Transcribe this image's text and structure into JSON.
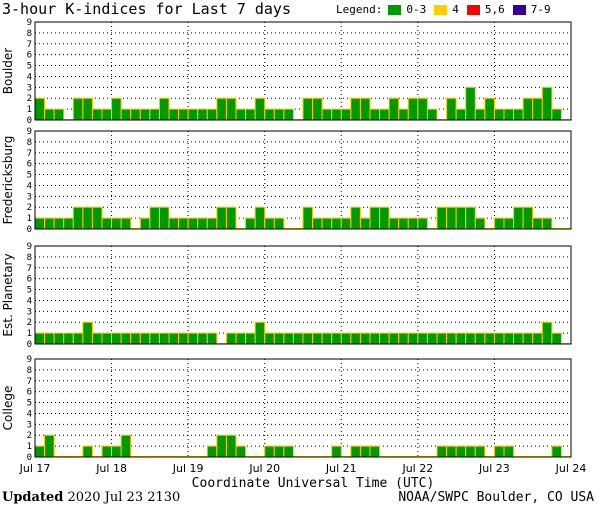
{
  "header": {
    "title": "3-hour K-indices for Last 7 days",
    "legend_label": "Legend:",
    "legend": [
      {
        "label": "0-3",
        "color": "#009900"
      },
      {
        "label": "4",
        "color": "#ffcc00"
      },
      {
        "label": "5,6",
        "color": "#ff0000"
      },
      {
        "label": "7-9",
        "color": "#330099"
      }
    ]
  },
  "footer": {
    "updated_label": "Updated",
    "updated_value": "2020 Jul 23 2130",
    "source": "NOAA/SWPC Boulder, CO USA"
  },
  "chart_data": {
    "type": "bar",
    "xlabel": "Coordinate Universal Time (UTC)",
    "x_ticks": [
      "Jul 17",
      "Jul 18",
      "Jul 19",
      "Jul 20",
      "Jul 21",
      "Jul 22",
      "Jul 23",
      "Jul 24"
    ],
    "y_ticks": [
      0,
      1,
      2,
      3,
      4,
      5,
      6,
      7,
      8,
      9
    ],
    "ylim": [
      0,
      9
    ],
    "bar_color": "#009900",
    "bar_outline": "#ffcc00",
    "grid": true,
    "panels": [
      {
        "name": "Boulder",
        "values": [
          2,
          1,
          1,
          0,
          2,
          2,
          1,
          1,
          2,
          1,
          1,
          1,
          1,
          2,
          1,
          1,
          1,
          1,
          1,
          2,
          2,
          1,
          1,
          2,
          1,
          1,
          1,
          0,
          2,
          2,
          1,
          1,
          1,
          2,
          2,
          1,
          1,
          2,
          1,
          2,
          2,
          1,
          0,
          2,
          1,
          3,
          1,
          2,
          1,
          1,
          1,
          2,
          2,
          3,
          1,
          0
        ]
      },
      {
        "name": "Fredericksburg",
        "values": [
          1,
          1,
          1,
          1,
          2,
          2,
          2,
          1,
          1,
          1,
          0,
          1,
          2,
          2,
          1,
          1,
          1,
          1,
          1,
          2,
          2,
          0,
          1,
          2,
          1,
          1,
          0,
          0,
          2,
          1,
          1,
          1,
          1,
          2,
          1,
          2,
          2,
          1,
          1,
          1,
          1,
          0,
          2,
          2,
          2,
          2,
          1,
          0,
          1,
          1,
          2,
          2,
          1,
          1,
          0,
          0
        ]
      },
      {
        "name": "Est. Planetary",
        "values": [
          1,
          1,
          1,
          1,
          1,
          2,
          1,
          1,
          1,
          1,
          1,
          1,
          1,
          1,
          1,
          1,
          1,
          1,
          1,
          0,
          1,
          1,
          1,
          2,
          1,
          1,
          1,
          1,
          1,
          1,
          1,
          1,
          1,
          1,
          1,
          1,
          1,
          1,
          1,
          1,
          1,
          1,
          1,
          1,
          1,
          1,
          1,
          1,
          1,
          1,
          1,
          1,
          1,
          2,
          1,
          0,
          0
        ]
      },
      {
        "name": "College",
        "values": [
          1,
          2,
          0,
          0,
          0,
          1,
          0,
          1,
          1,
          2,
          0,
          0,
          0,
          0,
          0,
          0,
          0,
          0,
          1,
          2,
          2,
          1,
          0,
          0,
          1,
          1,
          1,
          0,
          0,
          0,
          0,
          1,
          0,
          1,
          1,
          1,
          0,
          0,
          0,
          0,
          0,
          0,
          1,
          1,
          1,
          1,
          1,
          0,
          1,
          1,
          0,
          0,
          0,
          0,
          1,
          0,
          0,
          0
        ]
      }
    ]
  }
}
